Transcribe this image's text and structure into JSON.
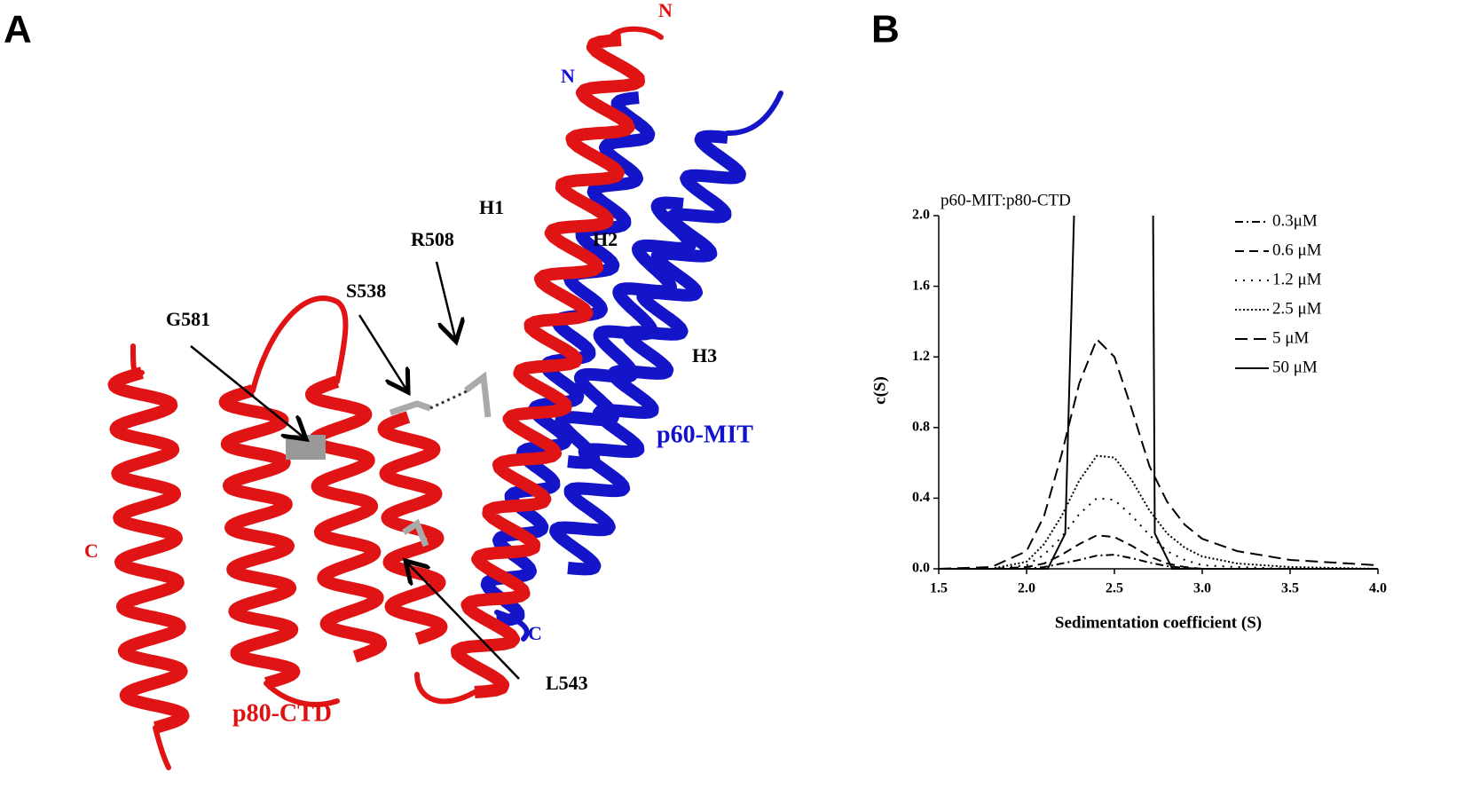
{
  "panel_a": {
    "panel_label": "A",
    "labels": {
      "n_red": "N",
      "n_blue": "N",
      "h1": "H1",
      "h2": "H2",
      "h3": "H3",
      "r508": "R508",
      "s538": "S538",
      "g581": "G581",
      "p60": "p60-MIT",
      "c_red": "C",
      "c_blue": "C",
      "l543": "L543",
      "p80": "p80-CTD"
    }
  },
  "chart_data": {
    "type": "line",
    "panel_label": "B",
    "title": "p60-MIT:p80-CTD",
    "x_label": "Sedimentation coefficient (S)",
    "y_label": "c(S)",
    "xlim": [
      1.5,
      4.0
    ],
    "ylim": [
      0,
      2.0
    ],
    "xticks": [
      1.5,
      {
        "value": 2,
        "label": "2.0"
      },
      2.5,
      {
        "value": 3,
        "label": "3.0"
      },
      3.5,
      {
        "value": 4,
        "label": "4.0"
      }
    ],
    "yticks": [
      {
        "value": 0,
        "label": "0.0"
      },
      0.4,
      0.8,
      1.2,
      1.6,
      {
        "value": 2,
        "label": "2.0"
      }
    ],
    "legend": "top-right",
    "series": [
      {
        "name": "0.3μM",
        "color": "#000000",
        "dash": "dash-dot",
        "x": [
          1.5,
          1.8,
          2.0,
          2.1,
          2.2,
          2.3,
          2.4,
          2.5,
          2.6,
          2.7,
          2.8,
          2.9,
          3.0,
          3.2,
          3.5,
          4.0
        ],
        "values": [
          0,
          0,
          0,
          0.01,
          0.03,
          0.05,
          0.075,
          0.08,
          0.06,
          0.035,
          0.015,
          0.005,
          0,
          0,
          0,
          0
        ]
      },
      {
        "name": "0.6 μM",
        "color": "#000000",
        "dash": "dash",
        "x": [
          1.5,
          1.8,
          2.0,
          2.1,
          2.2,
          2.3,
          2.4,
          2.5,
          2.6,
          2.7,
          2.8,
          2.9,
          3.0,
          3.2,
          3.5,
          4.0
        ],
        "values": [
          0,
          0,
          0.01,
          0.03,
          0.08,
          0.14,
          0.19,
          0.18,
          0.13,
          0.07,
          0.03,
          0.01,
          0,
          0,
          0,
          0
        ]
      },
      {
        "name": "1.2 μM",
        "color": "#000000",
        "dash": "dot",
        "x": [
          1.5,
          1.8,
          2.0,
          2.1,
          2.2,
          2.3,
          2.4,
          2.5,
          2.6,
          2.7,
          2.8,
          2.9,
          3.0,
          3.2,
          3.5,
          4.0
        ],
        "values": [
          0,
          0,
          0.02,
          0.08,
          0.18,
          0.31,
          0.4,
          0.39,
          0.3,
          0.19,
          0.1,
          0.05,
          0.02,
          0.01,
          0,
          0
        ]
      },
      {
        "name": "2.5 μM",
        "color": "#000000",
        "dash": "short-dot",
        "x": [
          1.5,
          1.8,
          2.0,
          2.1,
          2.2,
          2.3,
          2.4,
          2.5,
          2.6,
          2.7,
          2.8,
          2.9,
          3.0,
          3.2,
          3.5,
          4.0
        ],
        "values": [
          0,
          0,
          0.04,
          0.14,
          0.3,
          0.5,
          0.64,
          0.63,
          0.5,
          0.33,
          0.2,
          0.12,
          0.07,
          0.03,
          0.01,
          0
        ]
      },
      {
        "name": "5 μM",
        "color": "#000000",
        "dash": "long-dash",
        "x": [
          1.5,
          1.8,
          2.0,
          2.1,
          2.2,
          2.3,
          2.4,
          2.5,
          2.6,
          2.7,
          2.8,
          2.9,
          3.0,
          3.2,
          3.5,
          4.0
        ],
        "values": [
          0,
          0.01,
          0.1,
          0.3,
          0.65,
          1.05,
          1.3,
          1.2,
          0.9,
          0.58,
          0.38,
          0.25,
          0.17,
          0.1,
          0.05,
          0.02
        ]
      },
      {
        "name": "50 μM",
        "color": "#000000",
        "dash": "solid",
        "x": [
          1.5,
          2.12,
          2.22,
          2.27,
          2.5,
          2.72,
          2.73,
          2.83,
          4.0
        ],
        "values": [
          0,
          0,
          0.2,
          2.0,
          null,
          2.0,
          0.2,
          0,
          0
        ]
      }
    ]
  }
}
